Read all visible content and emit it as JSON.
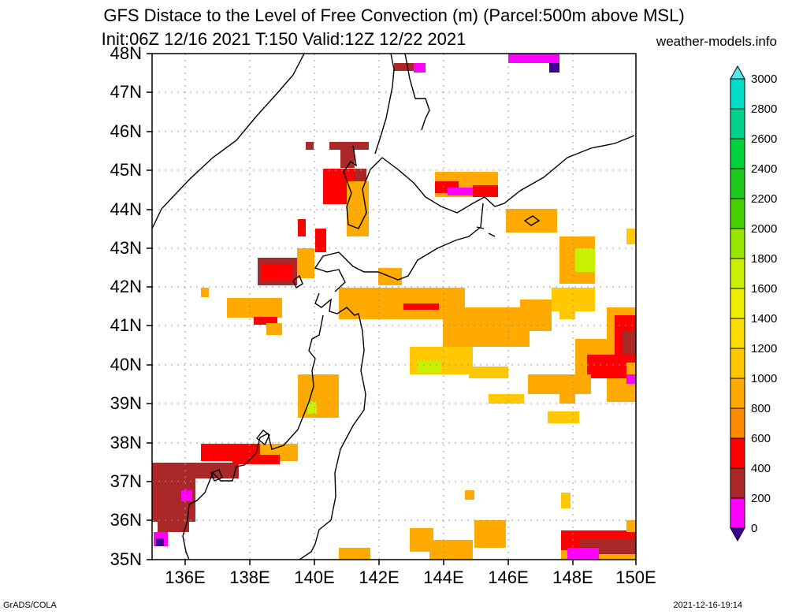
{
  "title_line1": "GFS Distace to the Level of Free Convection (m) (Parcel:500m above MSL)",
  "title_line2": "Init:06Z 12/16 2021 T:150 Valid:12Z 12/22 2021",
  "site": "weather-models.info",
  "footer_left": "GrADS/COLA",
  "footer_right": "2021-12-16-19:14",
  "lat_labels": [
    "48N",
    "47N",
    "46N",
    "45N",
    "44N",
    "43N",
    "42N",
    "41N",
    "40N",
    "39N",
    "38N",
    "37N",
    "36N",
    "35N"
  ],
  "lon_labels": [
    "136E",
    "138E",
    "140E",
    "142E",
    "144E",
    "146E",
    "148E",
    "150E"
  ],
  "colorbar": {
    "labels": [
      "3000",
      "2800",
      "2600",
      "2400",
      "2200",
      "2000",
      "1800",
      "1600",
      "1400",
      "1200",
      "1000",
      "800",
      "600",
      "400",
      "200",
      "0"
    ],
    "colors_top_to_bottom": [
      "#5ae6e6",
      "#00dcc8",
      "#00d28c",
      "#00d23c",
      "#1ec81e",
      "#46d200",
      "#96e600",
      "#c8f000",
      "#eef000",
      "#ffdc00",
      "#ffc800",
      "#ffaa00",
      "#ff8c00",
      "#ff0000",
      "#aa2828",
      "#ff00ff",
      "#3c0096"
    ]
  }
}
